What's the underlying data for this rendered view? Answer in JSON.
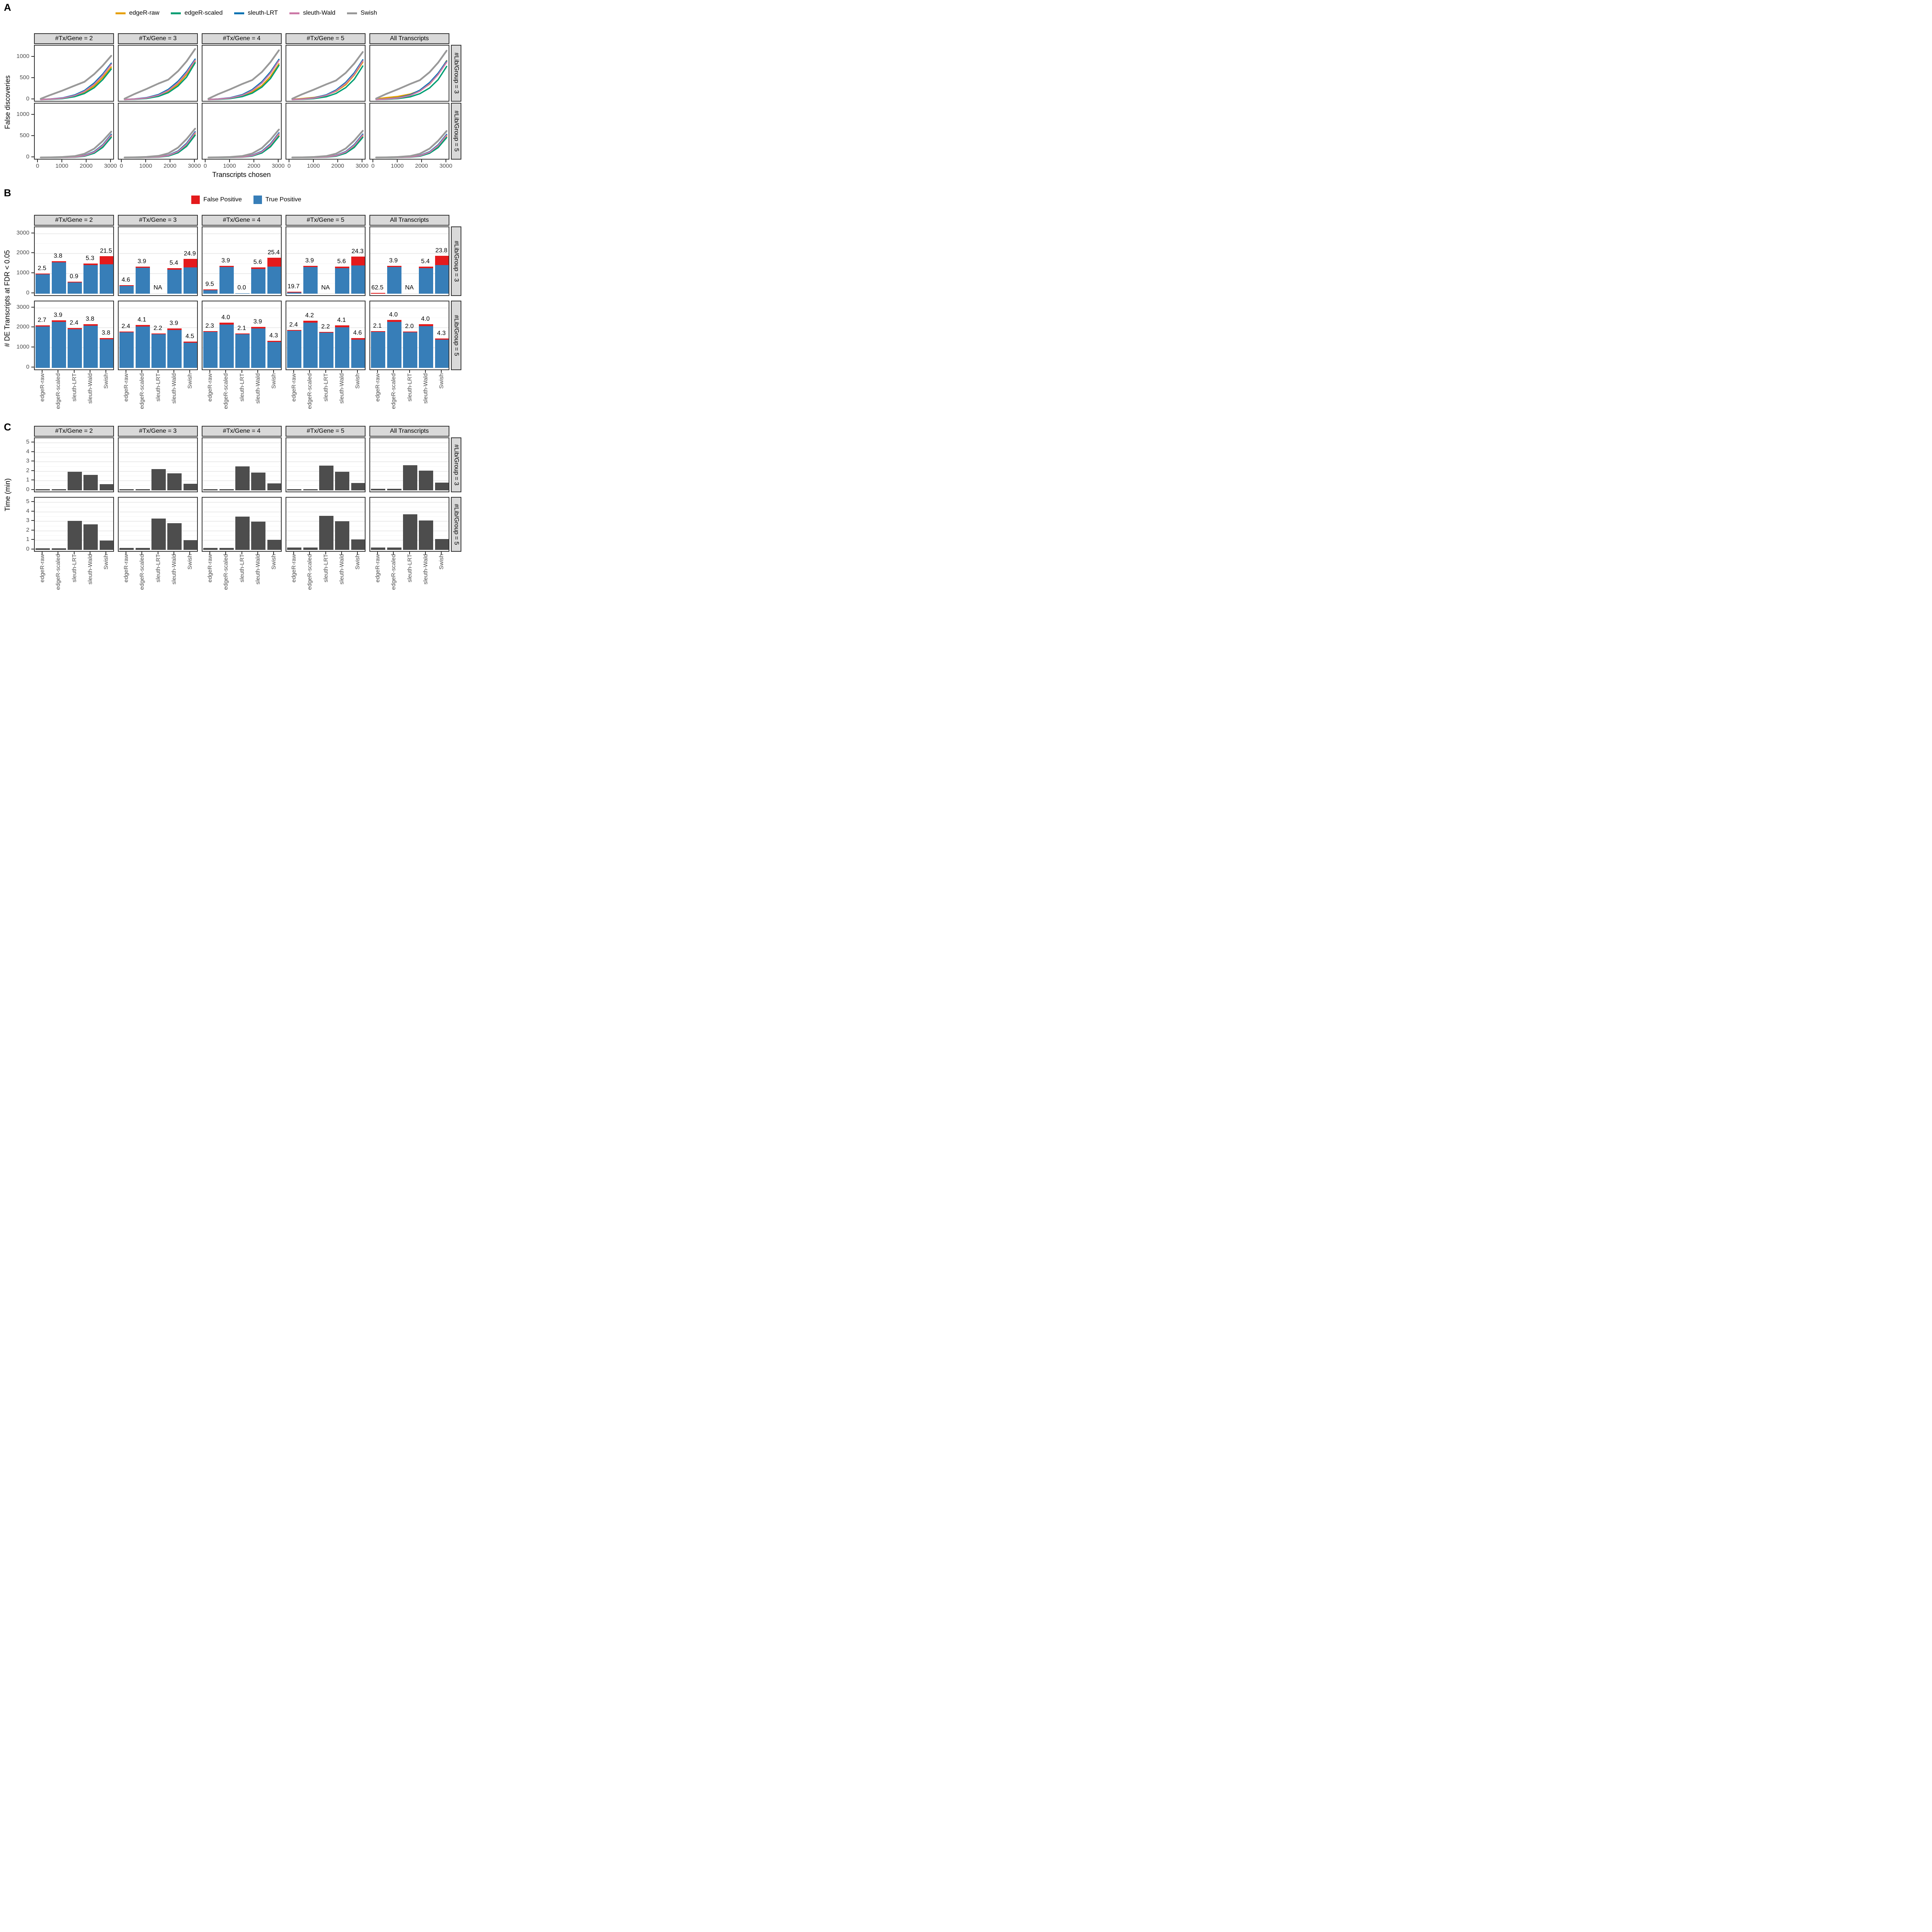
{
  "panels": {
    "a": {
      "label": "A",
      "xlabel": "Transcripts chosen",
      "ylabel": "False discoveries"
    },
    "b": {
      "label": "B",
      "ylabel": "# DE Transcripts at FDR < 0.05"
    },
    "c": {
      "label": "C",
      "ylabel": "Time (min)"
    }
  },
  "methods": [
    "edgeR-raw",
    "edgeR-scaled",
    "sleuth-LRT",
    "sleuth-Wald",
    "Swish"
  ],
  "palette": {
    "edgeR-raw": "#E69F00",
    "edgeR-scaled": "#009E73",
    "sleuth-LRT": "#0072B2",
    "sleuth-Wald": "#CC79A7",
    "Swish": "#999999"
  },
  "facet_cols": [
    "#Tx/Gene = 2",
    "#Tx/Gene = 3",
    "#Tx/Gene = 4",
    "#Tx/Gene = 5",
    "All Transcripts"
  ],
  "facet_rows": [
    "#Lib/Group = 3",
    "#Lib/Group = 5"
  ],
  "legend_b": [
    {
      "label": "False Positive",
      "color": "#E41A1C"
    },
    {
      "label": "True Positive",
      "color": "#377EB8"
    }
  ],
  "colors": {
    "strip_fill": "#D9D9D9",
    "panel_border": "#333333",
    "axis_text": "#4D4D4D",
    "grid_major": "#EBEBEB",
    "grid_minor": "#F4F4F4",
    "time_bar": "#4D4D4D",
    "false_positive": "#E41A1C",
    "true_positive": "#377EB8"
  },
  "chart_data": [
    {
      "id": "A",
      "type": "line",
      "title": "",
      "xlabel": "Transcripts chosen",
      "ylabel": "False discoveries",
      "col_facets": [
        "#Tx/Gene = 2",
        "#Tx/Gene = 3",
        "#Tx/Gene = 4",
        "#Tx/Gene = 5",
        "All Transcripts"
      ],
      "row_facets": [
        "#Lib/Group = 3",
        "#Lib/Group = 5"
      ],
      "series_order": [
        "edgeR-raw",
        "edgeR-scaled",
        "sleuth-LRT",
        "sleuth-Wald",
        "Swish"
      ],
      "x": [
        100,
        500,
        1000,
        1500,
        1900,
        2300,
        2650,
        3000
      ],
      "xticks": [
        0,
        1000,
        2000,
        3000
      ],
      "yticks": [
        0,
        500,
        1000
      ],
      "xlim": [
        -145,
        3145
      ],
      "ylim": [
        -65,
        1270
      ],
      "grid": false,
      "legend_position": "top",
      "rows": [
        [
          [
            [
              4,
              14,
              34,
              88,
              175,
              320,
              520,
              765
            ],
            [
              2,
              8,
              24,
              70,
              145,
              280,
              470,
              720
            ],
            [
              3,
              15,
              40,
              110,
              215,
              390,
              600,
              855
            ],
            [
              2,
              12,
              34,
              96,
              195,
              360,
              570,
              830
            ],
            [
              20,
              110,
              215,
              330,
              420,
              600,
              800,
              1030
            ]
          ],
          [
            [
              4,
              15,
              38,
              98,
              195,
              360,
              590,
              900
            ],
            [
              2,
              9,
              27,
              78,
              165,
              320,
              530,
              865
            ],
            [
              3,
              16,
              45,
              120,
              240,
              430,
              660,
              950
            ],
            [
              2,
              13,
              38,
              105,
              215,
              400,
              630,
              925
            ],
            [
              22,
              130,
              250,
              380,
              470,
              670,
              900,
              1190
            ]
          ],
          [
            [
              4,
              14,
              35,
              90,
              180,
              330,
              545,
              840
            ],
            [
              2,
              8,
              25,
              72,
              152,
              295,
              495,
              805
            ],
            [
              3,
              16,
              44,
              118,
              235,
              420,
              650,
              945
            ],
            [
              2,
              13,
              37,
              103,
              212,
              392,
              620,
              920
            ],
            [
              22,
              128,
              245,
              370,
              460,
              650,
              880,
              1160
            ]
          ],
          [
            [
              8,
              25,
              50,
              105,
              195,
              350,
              580,
              880
            ],
            [
              2,
              8,
              24,
              68,
              145,
              283,
              480,
              790
            ],
            [
              3,
              15,
              42,
              112,
              225,
              405,
              630,
              935
            ],
            [
              2,
              12,
              36,
              100,
              205,
              380,
              600,
              910
            ],
            [
              22,
              125,
              238,
              360,
              450,
              630,
              850,
              1120
            ]
          ],
          [
            [
              15,
              45,
              75,
              130,
              210,
              365,
              600,
              915
            ],
            [
              2,
              8,
              23,
              65,
              140,
              275,
              470,
              780
            ],
            [
              3,
              15,
              42,
              112,
              222,
              400,
              620,
              905
            ],
            [
              2,
              12,
              35,
              98,
              200,
              372,
              590,
              880
            ],
            [
              25,
              130,
              245,
              368,
              458,
              645,
              870,
              1150
            ]
          ]
        ],
        [
          [
            [
              1,
              2,
              6,
              14,
              40,
              120,
              270,
              505
            ],
            [
              0,
              1,
              4,
              11,
              33,
              103,
              240,
              475
            ],
            [
              1,
              3,
              7,
              18,
              50,
              140,
              300,
              545
            ],
            [
              1,
              2,
              6,
              15,
              44,
              128,
              285,
              525
            ],
            [
              3,
              6,
              14,
              35,
              90,
              210,
              390,
              610
            ]
          ],
          [
            [
              1,
              2,
              6,
              16,
              45,
              133,
              300,
              560
            ],
            [
              0,
              1,
              5,
              12,
              37,
              114,
              265,
              525
            ],
            [
              1,
              3,
              8,
              20,
              56,
              155,
              335,
              605
            ],
            [
              1,
              2,
              7,
              17,
              49,
              142,
              315,
              585
            ],
            [
              3,
              7,
              16,
              40,
              100,
              235,
              435,
              680
            ]
          ],
          [
            [
              1,
              2,
              6,
              15,
              43,
              127,
              287,
              535
            ],
            [
              0,
              1,
              4,
              12,
              35,
              109,
              253,
              500
            ],
            [
              1,
              3,
              8,
              19,
              53,
              148,
              322,
              580
            ],
            [
              1,
              2,
              7,
              16,
              47,
              136,
              303,
              560
            ],
            [
              3,
              7,
              15,
              38,
              96,
              225,
              420,
              660
            ]
          ],
          [
            [
              1,
              2,
              6,
              14,
              41,
              121,
              272,
              510
            ],
            [
              0,
              1,
              4,
              11,
              33,
              104,
              240,
              475
            ],
            [
              1,
              3,
              7,
              18,
              50,
              140,
              305,
              550
            ],
            [
              1,
              2,
              6,
              15,
              45,
              130,
              288,
              530
            ],
            [
              3,
              6,
              14,
              36,
              92,
              215,
              400,
              630
            ]
          ],
          [
            [
              1,
              2,
              6,
              14,
              40,
              119,
              268,
              505
            ],
            [
              0,
              1,
              4,
              11,
              32,
              102,
              236,
              470
            ],
            [
              1,
              3,
              7,
              18,
              49,
              137,
              300,
              545
            ],
            [
              1,
              2,
              6,
              15,
              44,
              127,
              283,
              525
            ],
            [
              3,
              6,
              14,
              36,
              90,
              212,
              395,
              625
            ]
          ]
        ]
      ]
    },
    {
      "id": "B",
      "type": "bar",
      "stacked": true,
      "title": "",
      "xlabel": "",
      "ylabel": "# DE Transcripts at FDR < 0.05",
      "col_facets": [
        "#Tx/Gene = 2",
        "#Tx/Gene = 3",
        "#Tx/Gene = 4",
        "#Tx/Gene = 5",
        "All Transcripts"
      ],
      "row_facets": [
        "#Lib/Group = 3",
        "#Lib/Group = 5"
      ],
      "categories": [
        "edgeR-raw",
        "edgeR-scaled",
        "sleuth-LRT",
        "sleuth-Wald",
        "Swish"
      ],
      "legend": [
        "False Positive",
        "True Positive"
      ],
      "legend_position": "top",
      "yticks": [
        0,
        1000,
        2000,
        3000
      ],
      "ylim": [
        -160,
        3320
      ],
      "grid": true,
      "note": "total = bar height (# DE transcripts); fdr = printed label (% false positives); null total = NA (no bar)",
      "rows": [
        [
          [
            {
              "fdr": "2.5",
              "total": 1000
            },
            {
              "fdr": "3.8",
              "total": 1625
            },
            {
              "fdr": "0.9",
              "total": 590
            },
            {
              "fdr": "5.3",
              "total": 1510
            },
            {
              "fdr": "21.5",
              "total": 1875
            }
          ],
          [
            {
              "fdr": "4.6",
              "total": 420
            },
            {
              "fdr": "3.9",
              "total": 1350
            },
            {
              "fdr": "NA",
              "total": null
            },
            {
              "fdr": "5.4",
              "total": 1270
            },
            {
              "fdr": "24.9",
              "total": 1740
            }
          ],
          [
            {
              "fdr": "9.5",
              "total": 205
            },
            {
              "fdr": "3.9",
              "total": 1380
            },
            {
              "fdr": "0.0",
              "total": 5
            },
            {
              "fdr": "5.6",
              "total": 1310
            },
            {
              "fdr": "25.4",
              "total": 1800
            }
          ],
          [
            {
              "fdr": "19.7",
              "total": 95
            },
            {
              "fdr": "3.9",
              "total": 1390
            },
            {
              "fdr": "NA",
              "total": null
            },
            {
              "fdr": "5.6",
              "total": 1340
            },
            {
              "fdr": "24.3",
              "total": 1850
            }
          ],
          [
            {
              "fdr": "62.5",
              "total": 35
            },
            {
              "fdr": "3.9",
              "total": 1380
            },
            {
              "fdr": "NA",
              "total": null
            },
            {
              "fdr": "5.4",
              "total": 1350
            },
            {
              "fdr": "23.8",
              "total": 1880
            }
          ]
        ],
        [
          [
            {
              "fdr": "2.7",
              "total": 2130
            },
            {
              "fdr": "3.9",
              "total": 2380
            },
            {
              "fdr": "2.4",
              "total": 1980
            },
            {
              "fdr": "3.8",
              "total": 2180
            },
            {
              "fdr": "3.8",
              "total": 1490
            }
          ],
          [
            {
              "fdr": "2.4",
              "total": 1810
            },
            {
              "fdr": "4.1",
              "total": 2150
            },
            {
              "fdr": "2.2",
              "total": 1720
            },
            {
              "fdr": "3.9",
              "total": 1960
            },
            {
              "fdr": "4.5",
              "total": 1310
            }
          ],
          [
            {
              "fdr": "2.3",
              "total": 1840
            },
            {
              "fdr": "4.0",
              "total": 2250
            },
            {
              "fdr": "2.1",
              "total": 1710
            },
            {
              "fdr": "3.9",
              "total": 2040
            },
            {
              "fdr": "4.3",
              "total": 1350
            }
          ],
          [
            {
              "fdr": "2.4",
              "total": 1890
            },
            {
              "fdr": "4.2",
              "total": 2350
            },
            {
              "fdr": "2.2",
              "total": 1800
            },
            {
              "fdr": "4.1",
              "total": 2120
            },
            {
              "fdr": "4.6",
              "total": 1480
            }
          ],
          [
            {
              "fdr": "2.1",
              "total": 1830
            },
            {
              "fdr": "4.0",
              "total": 2400
            },
            {
              "fdr": "2.0",
              "total": 1820
            },
            {
              "fdr": "4.0",
              "total": 2170
            },
            {
              "fdr": "4.3",
              "total": 1470
            }
          ]
        ]
      ]
    },
    {
      "id": "C",
      "type": "bar",
      "stacked": false,
      "title": "",
      "xlabel": "",
      "ylabel": "Time (min)",
      "col_facets": [
        "#Tx/Gene = 2",
        "#Tx/Gene = 3",
        "#Tx/Gene = 4",
        "#Tx/Gene = 5",
        "All Transcripts"
      ],
      "row_facets": [
        "#Lib/Group = 3",
        "#Lib/Group = 5"
      ],
      "categories": [
        "edgeR-raw",
        "edgeR-scaled",
        "sleuth-LRT",
        "sleuth-Wald",
        "Swish"
      ],
      "yticks": [
        0,
        1,
        2,
        3,
        4,
        5
      ],
      "ylim": [
        -0.3,
        5.5
      ],
      "grid": true,
      "rows": [
        [
          [
            0.1,
            0.1,
            1.95,
            1.6,
            0.62
          ],
          [
            0.1,
            0.1,
            2.25,
            1.8,
            0.7
          ],
          [
            0.1,
            0.1,
            2.5,
            1.85,
            0.72
          ],
          [
            0.12,
            0.12,
            2.6,
            1.95,
            0.75
          ],
          [
            0.15,
            0.15,
            2.65,
            2.05,
            0.8
          ]
        ],
        [
          [
            0.15,
            0.15,
            3.05,
            2.7,
            0.95
          ],
          [
            0.2,
            0.2,
            3.3,
            2.8,
            1.0
          ],
          [
            0.2,
            0.2,
            3.5,
            2.95,
            1.05
          ],
          [
            0.25,
            0.25,
            3.6,
            3.0,
            1.1
          ],
          [
            0.25,
            0.25,
            3.75,
            3.1,
            1.15
          ]
        ]
      ]
    }
  ]
}
